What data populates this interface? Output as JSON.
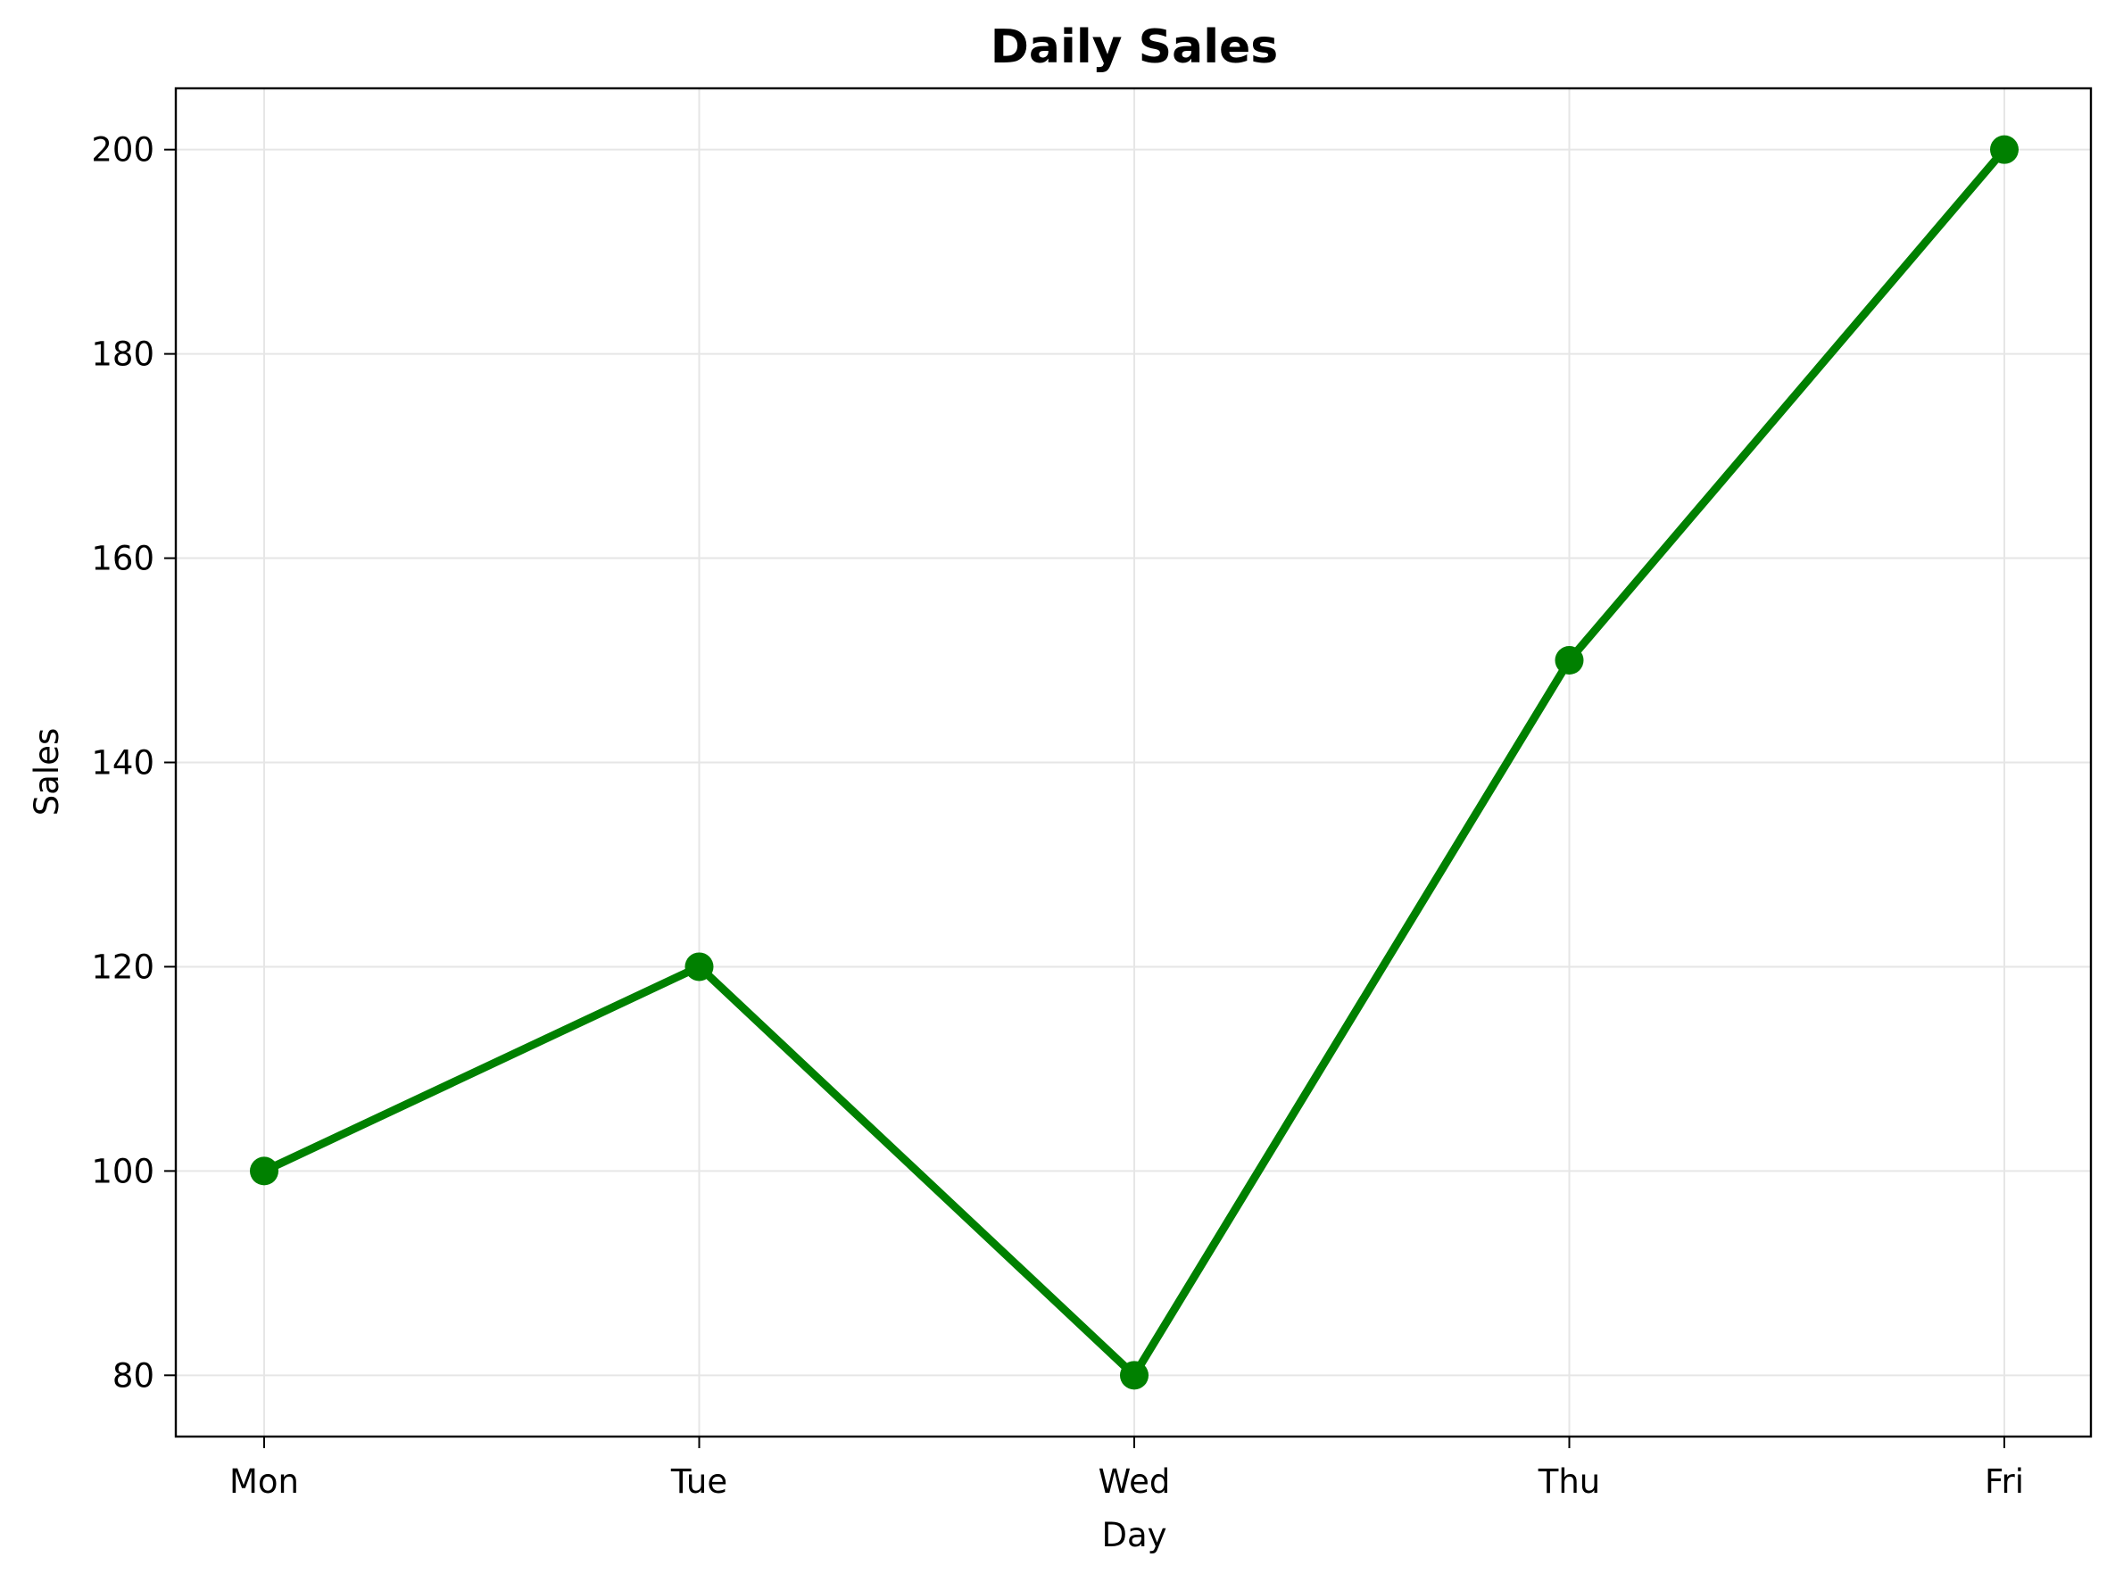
{
  "chart_data": {
    "type": "line",
    "title": "Daily Sales",
    "xlabel": "Day",
    "ylabel": "Sales",
    "categories": [
      "Mon",
      "Tue",
      "Wed",
      "Thu",
      "Fri"
    ],
    "series": [
      {
        "values": [
          100,
          120,
          80,
          150,
          200
        ],
        "color": "#008000",
        "marker": "circle"
      }
    ],
    "ylim": [
      74,
      206
    ],
    "yticks": [
      80,
      100,
      120,
      140,
      160,
      180,
      200
    ],
    "grid": true,
    "legend": "none"
  }
}
